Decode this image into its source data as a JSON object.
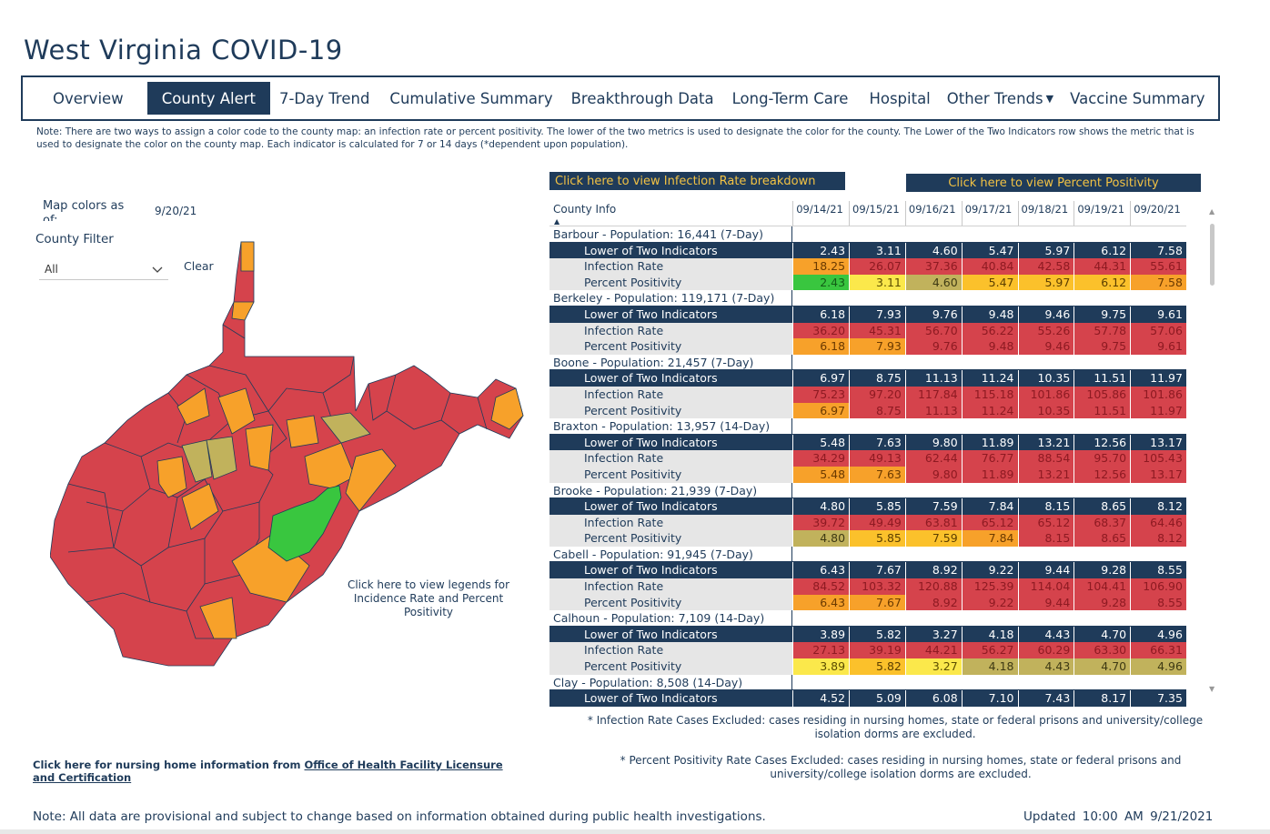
{
  "app": {
    "title": "West Virginia COVID-19"
  },
  "colors": {
    "navy": "#1f3b5a",
    "red": "#d5434c",
    "orange": "#f7a12a",
    "gold": "#fbc12b",
    "yellow": "#fbe84b",
    "olive": "#c1b25c",
    "green": "#39c63f",
    "grey": "#e6e6e6"
  },
  "nav": {
    "tabs": [
      {
        "label": "Overview"
      },
      {
        "label": "County Alert",
        "active": true
      },
      {
        "label": "7-Day Trend"
      },
      {
        "label": "Cumulative Summary"
      },
      {
        "label": "Breakthrough Data"
      },
      {
        "label": "Long-Term Care"
      },
      {
        "label": "Hospital"
      },
      {
        "label": "Other Trends",
        "icon": "caret-down-icon"
      },
      {
        "label": "Vaccine Summary"
      }
    ]
  },
  "note_top": "Note: There are two ways to assign a color code to the county map: an infection rate or percent positivity. The lower of the two metrics is used to designate the color for the county. The Lower of the Two Indicators row shows the metric that is used to designate the color on the county map. Each indicator is calculated for 7 or 14 days (*dependent upon population).",
  "map_panel": {
    "colors_label": "Map colors as of:",
    "date": "9/20/21",
    "filter_label": "County Filter",
    "filter_value": "All",
    "clear_label": "Clear",
    "legend_link": "Click here to view legends for Incidence Rate and Percent Positivity"
  },
  "buttons": {
    "infection_breakdown": "Click here to view Infection Rate breakdown",
    "percent_positivity": "Click here to view Percent Positivity"
  },
  "table": {
    "header_info": "County Info",
    "dates": [
      "09/14/21",
      "09/15/21",
      "09/16/21",
      "09/17/21",
      "09/18/21",
      "09/19/21",
      "09/20/21"
    ],
    "row_labels": {
      "lower": "Lower of Two Indicators",
      "infection": "Infection Rate",
      "positivity": "Percent Positivity"
    },
    "counties": [
      {
        "name": "Barbour - Population: 16,441 (7-Day)",
        "lower": [
          "2.43",
          "3.11",
          "4.60",
          "5.47",
          "5.97",
          "6.12",
          "7.58"
        ],
        "infection": [
          "18.25",
          "26.07",
          "37.36",
          "40.84",
          "42.58",
          "44.31",
          "55.61"
        ],
        "infection_colors": [
          "orange",
          "red",
          "red",
          "red",
          "red",
          "red",
          "red"
        ],
        "positivity": [
          "2.43",
          "3.11",
          "4.60",
          "5.47",
          "5.97",
          "6.12",
          "7.58"
        ],
        "positivity_colors": [
          "green",
          "yellow",
          "olive",
          "gold",
          "gold",
          "gold",
          "orange"
        ]
      },
      {
        "name": "Berkeley - Population: 119,171 (7-Day)",
        "lower": [
          "6.18",
          "7.93",
          "9.76",
          "9.48",
          "9.46",
          "9.75",
          "9.61"
        ],
        "infection": [
          "36.20",
          "45.31",
          "56.70",
          "56.22",
          "55.26",
          "57.78",
          "57.06"
        ],
        "infection_colors": [
          "red",
          "red",
          "red",
          "red",
          "red",
          "red",
          "red"
        ],
        "positivity": [
          "6.18",
          "7.93",
          "9.76",
          "9.48",
          "9.46",
          "9.75",
          "9.61"
        ],
        "positivity_colors": [
          "orange",
          "orange",
          "red",
          "red",
          "red",
          "red",
          "red"
        ]
      },
      {
        "name": "Boone - Population: 21,457 (7-Day)",
        "lower": [
          "6.97",
          "8.75",
          "11.13",
          "11.24",
          "10.35",
          "11.51",
          "11.97"
        ],
        "infection": [
          "75.23",
          "97.20",
          "117.84",
          "115.18",
          "101.86",
          "105.86",
          "101.86"
        ],
        "infection_colors": [
          "red",
          "red",
          "red",
          "red",
          "red",
          "red",
          "red"
        ],
        "positivity": [
          "6.97",
          "8.75",
          "11.13",
          "11.24",
          "10.35",
          "11.51",
          "11.97"
        ],
        "positivity_colors": [
          "orange",
          "red",
          "red",
          "red",
          "red",
          "red",
          "red"
        ]
      },
      {
        "name": "Braxton - Population: 13,957 (14-Day)",
        "lower": [
          "5.48",
          "7.63",
          "9.80",
          "11.89",
          "13.21",
          "12.56",
          "13.17"
        ],
        "infection": [
          "34.29",
          "49.13",
          "62.44",
          "76.77",
          "88.54",
          "95.70",
          "105.43"
        ],
        "infection_colors": [
          "red",
          "red",
          "red",
          "red",
          "red",
          "red",
          "red"
        ],
        "positivity": [
          "5.48",
          "7.63",
          "9.80",
          "11.89",
          "13.21",
          "12.56",
          "13.17"
        ],
        "positivity_colors": [
          "orange",
          "orange",
          "red",
          "red",
          "red",
          "red",
          "red"
        ]
      },
      {
        "name": "Brooke - Population: 21,939 (7-Day)",
        "lower": [
          "4.80",
          "5.85",
          "7.59",
          "7.84",
          "8.15",
          "8.65",
          "8.12"
        ],
        "infection": [
          "39.72",
          "49.49",
          "63.81",
          "65.12",
          "65.12",
          "68.37",
          "64.46"
        ],
        "infection_colors": [
          "red",
          "red",
          "red",
          "red",
          "red",
          "red",
          "red"
        ],
        "positivity": [
          "4.80",
          "5.85",
          "7.59",
          "7.84",
          "8.15",
          "8.65",
          "8.12"
        ],
        "positivity_colors": [
          "olive",
          "gold",
          "gold",
          "orange",
          "red",
          "red",
          "red"
        ]
      },
      {
        "name": "Cabell - Population: 91,945 (7-Day)",
        "lower": [
          "6.43",
          "7.67",
          "8.92",
          "9.22",
          "9.44",
          "9.28",
          "8.55"
        ],
        "infection": [
          "84.52",
          "103.32",
          "120.88",
          "125.39",
          "114.04",
          "104.41",
          "106.90"
        ],
        "infection_colors": [
          "red",
          "red",
          "red",
          "red",
          "red",
          "red",
          "red"
        ],
        "positivity": [
          "6.43",
          "7.67",
          "8.92",
          "9.22",
          "9.44",
          "9.28",
          "8.55"
        ],
        "positivity_colors": [
          "orange",
          "orange",
          "red",
          "red",
          "red",
          "red",
          "red"
        ]
      },
      {
        "name": "Calhoun - Population: 7,109 (14-Day)",
        "lower": [
          "3.89",
          "5.82",
          "3.27",
          "4.18",
          "4.43",
          "4.70",
          "4.96"
        ],
        "infection": [
          "27.13",
          "39.19",
          "44.21",
          "56.27",
          "60.29",
          "63.30",
          "66.31"
        ],
        "infection_colors": [
          "red",
          "red",
          "red",
          "red",
          "red",
          "red",
          "red"
        ],
        "positivity": [
          "3.89",
          "5.82",
          "3.27",
          "4.18",
          "4.43",
          "4.70",
          "4.96"
        ],
        "positivity_colors": [
          "yellow",
          "gold",
          "yellow",
          "olive",
          "olive",
          "olive",
          "olive"
        ]
      },
      {
        "name": "Clay - Population: 8,508 (14-Day)",
        "lower": [
          "4.52",
          "5.09",
          "6.08",
          "7.10",
          "7.43",
          "8.17",
          "7.35"
        ]
      }
    ]
  },
  "footnotes": {
    "infection": "* Infection Rate Cases Excluded: cases residing in nursing homes, state or federal prisons and university/college isolation dorms are excluded.",
    "positivity": "* Percent Positivity Rate Cases Excluded: cases residing in nursing homes, state or federal prisons and university/college isolation dorms are excluded."
  },
  "nursing": {
    "prefix": "Click here for nursing home information from ",
    "link": "Office of Health Facility Licensure and Certification"
  },
  "bottom_note": "Note: All data are provisional and subject to change based on information obtained during public health investigations.",
  "updated": "Updated 10:00 AM 9/21/2021",
  "map_counties": [
    {
      "c": "orange"
    },
    {
      "c": "red"
    },
    {
      "c": "orange"
    },
    {
      "c": "red"
    },
    {
      "c": "red"
    },
    {
      "c": "red"
    },
    {
      "c": "red"
    },
    {
      "c": "orange"
    },
    {
      "c": "red"
    },
    {
      "c": "red"
    }
  ]
}
